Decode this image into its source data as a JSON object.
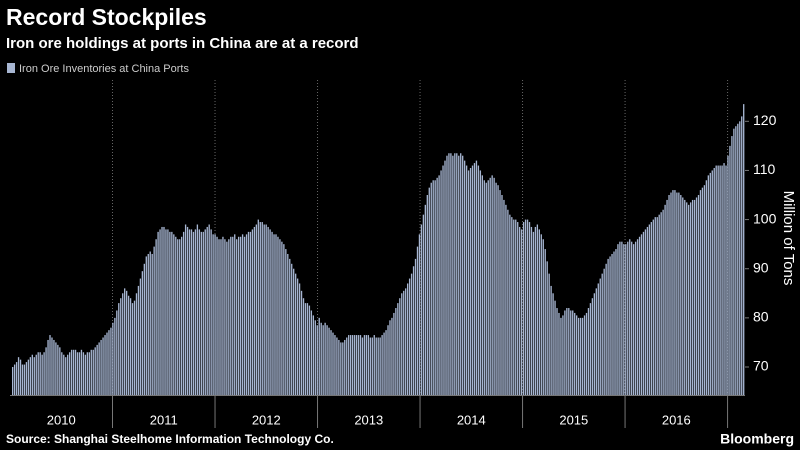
{
  "chart_data": {
    "type": "bar",
    "title": "Record Stockpiles",
    "subtitle": "Iron ore holdings at ports in China are at a record",
    "y_label": "Million of Tons",
    "source": "Source: Shanghai Steelhome Information Technology Co.",
    "brand": "Bloomberg",
    "series": [
      {
        "name": "Iron Ore Inventories at China Ports",
        "color": "#a7b6d2",
        "values": [
          70,
          70.5,
          71,
          72,
          71.5,
          70.5,
          70.5,
          71,
          71.5,
          72,
          72.5,
          72,
          72.5,
          73,
          73,
          72.5,
          73,
          74,
          75.5,
          76.5,
          76,
          75.5,
          75,
          74.5,
          74,
          73,
          72.5,
          72,
          72.5,
          73,
          73.5,
          73.5,
          73.5,
          73,
          73,
          73.5,
          73,
          72.5,
          73,
          73,
          73.5,
          73.5,
          74,
          74.5,
          75,
          75.5,
          76,
          76.5,
          77,
          77.5,
          78,
          79,
          80,
          81.5,
          83,
          84,
          85,
          86,
          85.5,
          84.5,
          84,
          83,
          83.5,
          85,
          86.5,
          88,
          89.5,
          91,
          92.5,
          93,
          93.5,
          93,
          94.5,
          96,
          97.5,
          98,
          98.5,
          98.5,
          98,
          98,
          97.5,
          97.5,
          97,
          96.5,
          96,
          96,
          96.5,
          97.5,
          99,
          98.5,
          98,
          98,
          97.5,
          98,
          99,
          98,
          97.5,
          97.5,
          98,
          98.5,
          99,
          98,
          97,
          97,
          96.5,
          96,
          96,
          96.5,
          96,
          95.5,
          96,
          96.5,
          96.5,
          97,
          96,
          96.5,
          96.5,
          97,
          96.5,
          97,
          97.5,
          97.5,
          98,
          98.5,
          99,
          100,
          99.5,
          99.5,
          99,
          99,
          98.5,
          98,
          97.5,
          97,
          97,
          96.5,
          96,
          95.5,
          95,
          94,
          93,
          92,
          91,
          90,
          89,
          88,
          87,
          85.5,
          84,
          83,
          83,
          82.5,
          81.5,
          80.5,
          79.5,
          78.5,
          80,
          79,
          78.5,
          79,
          78.5,
          78,
          77.5,
          77,
          76.5,
          76,
          75.5,
          75,
          75,
          75.5,
          76,
          76.5,
          76.5,
          76.5,
          76.5,
          76.5,
          76.5,
          76.5,
          76,
          76.5,
          76.5,
          76.5,
          76,
          76,
          76.5,
          76,
          76,
          76,
          76.5,
          77,
          77.5,
          78.5,
          79.5,
          80,
          81,
          82,
          83,
          84,
          85,
          85.5,
          86,
          87,
          88,
          89,
          90.5,
          92,
          94.5,
          97,
          99,
          101,
          103,
          105,
          106.5,
          107.5,
          108,
          108,
          108.5,
          109,
          110,
          111,
          112,
          113,
          113.5,
          113.5,
          113,
          113.5,
          113.5,
          113,
          113.5,
          113,
          112,
          111,
          110,
          110.5,
          111,
          111.5,
          112,
          111,
          110,
          109,
          108,
          107.5,
          108,
          108.5,
          109,
          108.5,
          107.5,
          107,
          106,
          105,
          104,
          103,
          102,
          101,
          100.5,
          100,
          100,
          99.5,
          98.5,
          98,
          99.5,
          100,
          100,
          99.5,
          98.5,
          97.5,
          98.5,
          99,
          98,
          97,
          96,
          94,
          91.5,
          89,
          86.5,
          85,
          83.5,
          82,
          81,
          80,
          80.5,
          81.5,
          82,
          82,
          81.5,
          81.5,
          81,
          80.5,
          80,
          80,
          80,
          80.5,
          81,
          82,
          83,
          84,
          85,
          86,
          87,
          88,
          89,
          90,
          91,
          92,
          92.5,
          93,
          93.5,
          94,
          95,
          95.5,
          95.5,
          95,
          95,
          95.5,
          96,
          95.5,
          95,
          95.5,
          96,
          96.5,
          97,
          97.5,
          98,
          98.5,
          99,
          99.5,
          100,
          100.5,
          100.5,
          101,
          101.5,
          102,
          103,
          104,
          105,
          105.5,
          106,
          106,
          105.5,
          105.5,
          105,
          104.5,
          104,
          103.5,
          103,
          103.5,
          104,
          104,
          104.5,
          105,
          106,
          106.5,
          107,
          108,
          109,
          109.5,
          110,
          110.5,
          111,
          111,
          111,
          111,
          111.5,
          111,
          113,
          115,
          117,
          118.5,
          119,
          119.5,
          120,
          121,
          123.5
        ]
      }
    ],
    "xlim": [
      2010,
      2017.17
    ],
    "xticks": [
      2011,
      2012,
      2013,
      2014,
      2015,
      2016,
      2017
    ],
    "x_labels": [
      "2010",
      "2011",
      "2012",
      "2013",
      "2014",
      "2015",
      "2016"
    ],
    "ylim": [
      64.3,
      128
    ],
    "yticks": [
      70,
      80,
      90,
      100,
      110,
      120
    ],
    "grid": true
  }
}
